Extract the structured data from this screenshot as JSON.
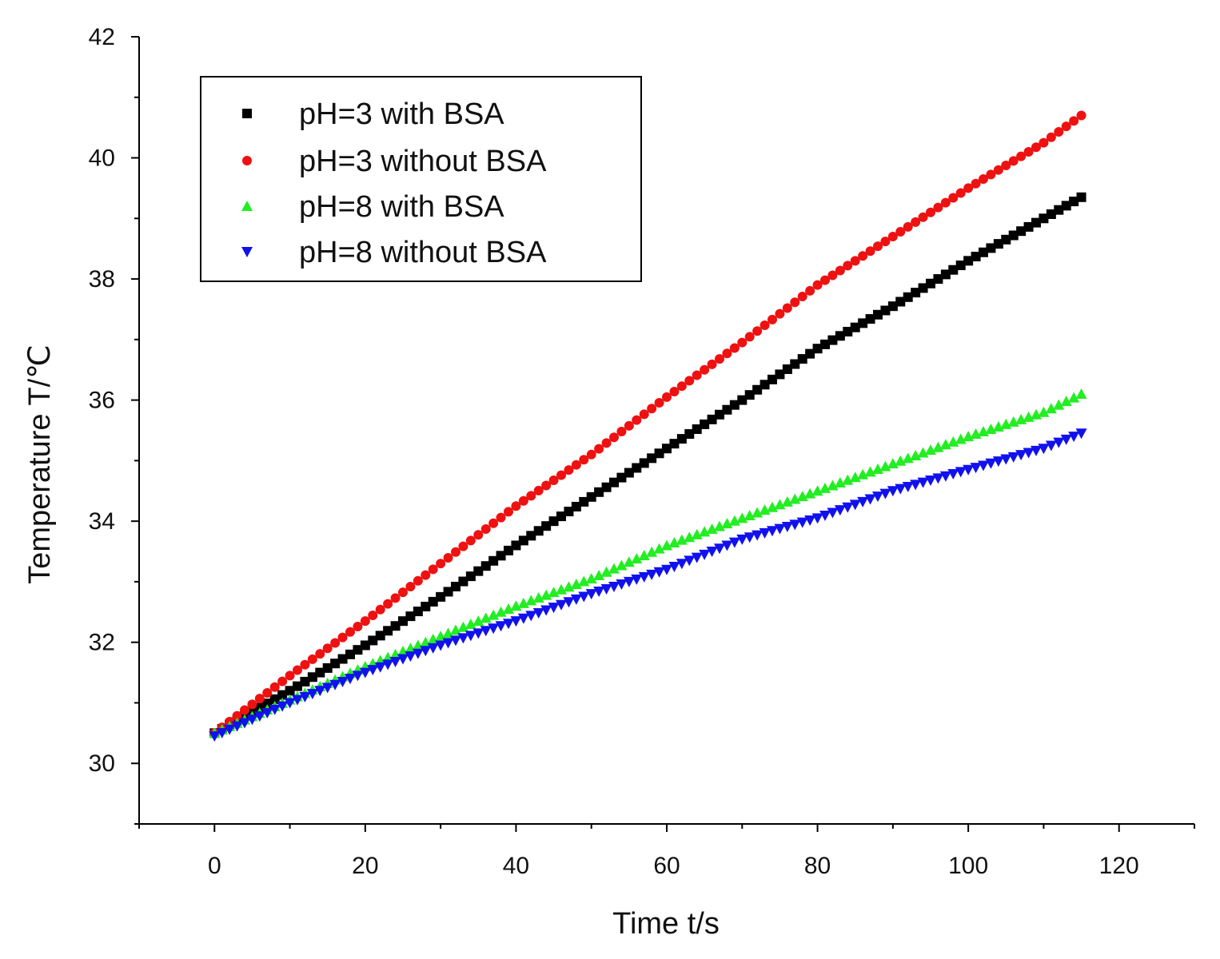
{
  "chart_data": {
    "type": "scatter",
    "title": "",
    "xlabel": "Time t/s",
    "ylabel": "Temperature T/℃",
    "xlim": [
      -10,
      130
    ],
    "ylim": [
      29,
      42
    ],
    "x_ticks": [
      0,
      20,
      40,
      60,
      80,
      100,
      120
    ],
    "x_tick_labels": [
      "0",
      "20",
      "40",
      "60",
      "80",
      "100",
      "120"
    ],
    "y_ticks": [
      30,
      32,
      34,
      36,
      38,
      40,
      42
    ],
    "y_tick_labels": [
      "30",
      "32",
      "34",
      "36",
      "38",
      "40",
      "42"
    ],
    "grid": false,
    "legend_position": "top-left",
    "series": [
      {
        "name": "pH=3 with BSA",
        "color": "#000000",
        "marker": "square",
        "x": [
          0,
          10,
          20,
          30,
          40,
          50,
          60,
          70,
          80,
          90,
          100,
          110,
          115
        ],
        "y": [
          30.5,
          31.2,
          31.95,
          32.75,
          33.6,
          34.4,
          35.2,
          36.0,
          36.85,
          37.55,
          38.3,
          39.0,
          39.35
        ]
      },
      {
        "name": "pH=3 without BSA",
        "color": "#ee1111",
        "marker": "circle",
        "x": [
          0,
          10,
          20,
          30,
          40,
          50,
          60,
          70,
          80,
          90,
          100,
          110,
          115
        ],
        "y": [
          30.5,
          31.45,
          32.35,
          33.3,
          34.25,
          35.1,
          36.05,
          36.95,
          37.9,
          38.7,
          39.5,
          40.25,
          40.7
        ]
      },
      {
        "name": "pH=8 with BSA",
        "color": "#22ee22",
        "marker": "triangle-up",
        "x": [
          0,
          10,
          20,
          30,
          40,
          50,
          60,
          70,
          80,
          90,
          100,
          110,
          115
        ],
        "y": [
          30.5,
          31.05,
          31.6,
          32.1,
          32.6,
          33.05,
          33.6,
          34.05,
          34.5,
          34.95,
          35.4,
          35.8,
          36.1
        ]
      },
      {
        "name": "pH=8 without BSA",
        "color": "#1111ee",
        "marker": "triangle-down",
        "x": [
          0,
          10,
          20,
          30,
          40,
          50,
          60,
          70,
          80,
          90,
          100,
          110,
          115
        ],
        "y": [
          30.45,
          31.0,
          31.5,
          31.95,
          32.35,
          32.8,
          33.2,
          33.7,
          34.05,
          34.5,
          34.85,
          35.2,
          35.45
        ]
      }
    ]
  }
}
